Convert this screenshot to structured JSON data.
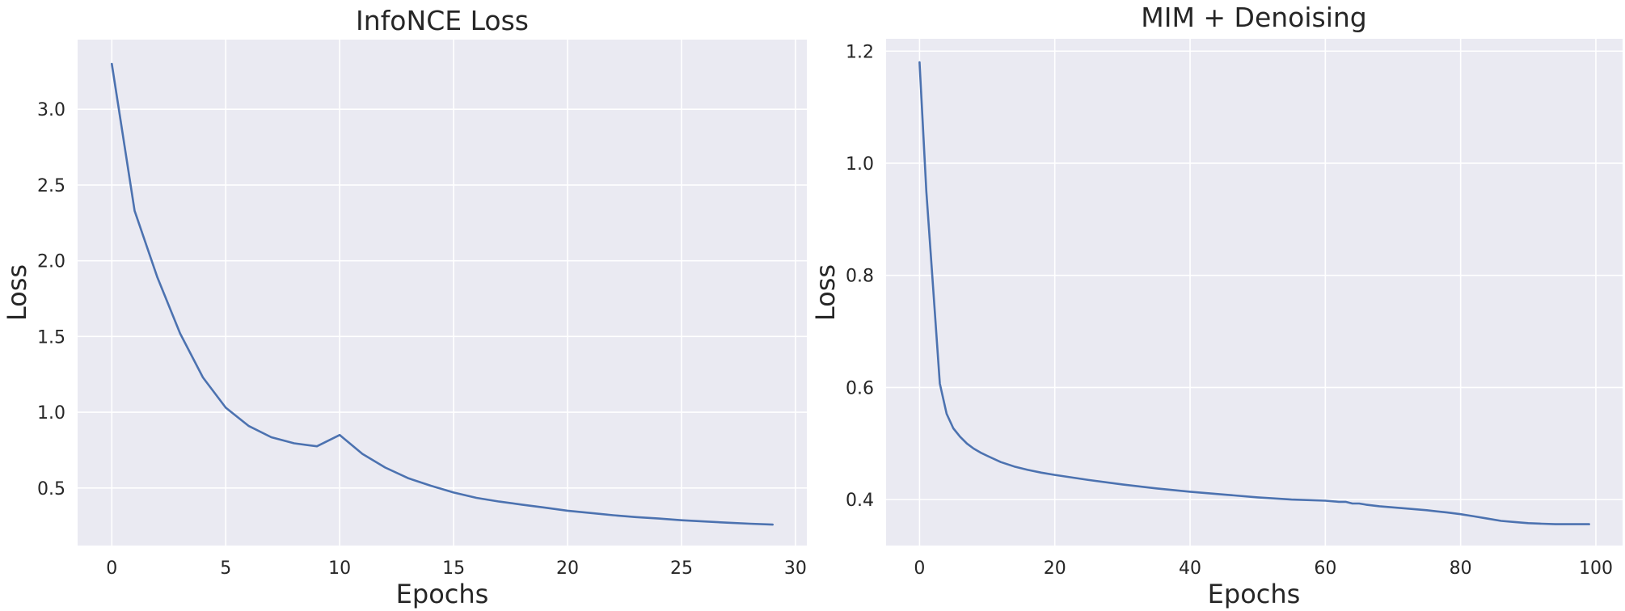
{
  "chart_data": [
    {
      "type": "line",
      "title": "InfoNCE Loss",
      "xlabel": "Epochs",
      "ylabel": "Loss",
      "xlim": [
        -1.5,
        30.5
      ],
      "ylim": [
        0.12,
        3.46
      ],
      "xticks": [
        0,
        5,
        10,
        15,
        20,
        25,
        30
      ],
      "yticks": [
        0.5,
        1.0,
        1.5,
        2.0,
        2.5,
        3.0
      ],
      "xtick_labels": [
        "0",
        "5",
        "10",
        "15",
        "20",
        "25",
        "30"
      ],
      "ytick_labels": [
        "0.5",
        "1.0",
        "1.5",
        "2.0",
        "2.5",
        "3.0"
      ],
      "grid": true,
      "color": "#4c72b0",
      "x": [
        0,
        1,
        2,
        3,
        4,
        5,
        6,
        7,
        8,
        9,
        10,
        11,
        12,
        13,
        14,
        15,
        16,
        17,
        18,
        19,
        20,
        21,
        22,
        23,
        24,
        25,
        26,
        27,
        28,
        29
      ],
      "y": [
        3.3,
        2.33,
        1.89,
        1.52,
        1.23,
        1.03,
        0.91,
        0.835,
        0.795,
        0.775,
        0.85,
        0.725,
        0.635,
        0.565,
        0.515,
        0.47,
        0.435,
        0.41,
        0.39,
        0.37,
        0.35,
        0.335,
        0.32,
        0.308,
        0.298,
        0.287,
        0.279,
        0.271,
        0.264,
        0.258
      ]
    },
    {
      "type": "line",
      "title": "MIM + Denoising",
      "xlabel": "Epochs",
      "ylabel": "Loss",
      "xlim": [
        -4.95,
        103.95
      ],
      "ylim": [
        0.318,
        1.222
      ],
      "xticks": [
        0,
        20,
        40,
        60,
        80,
        100
      ],
      "yticks": [
        0.4,
        0.6,
        0.8,
        1.0,
        1.2
      ],
      "xtick_labels": [
        "0",
        "20",
        "40",
        "60",
        "80",
        "100"
      ],
      "ytick_labels": [
        "0.4",
        "0.6",
        "0.8",
        "1.0",
        "1.2"
      ],
      "grid": true,
      "color": "#4c72b0",
      "x": [
        0,
        1,
        2,
        3,
        4,
        5,
        6,
        7,
        8,
        9,
        10,
        12,
        14,
        16,
        18,
        20,
        25,
        30,
        35,
        40,
        45,
        50,
        55,
        60,
        62,
        63,
        64,
        65,
        66,
        68,
        70,
        72,
        75,
        78,
        80,
        82,
        84,
        86,
        88,
        90,
        92,
        94,
        96,
        99
      ],
      "y": [
        1.18,
        0.95,
        0.78,
        0.607,
        0.553,
        0.527,
        0.512,
        0.5,
        0.491,
        0.484,
        0.478,
        0.467,
        0.459,
        0.453,
        0.448,
        0.444,
        0.435,
        0.427,
        0.42,
        0.414,
        0.409,
        0.404,
        0.4,
        0.398,
        0.396,
        0.396,
        0.393,
        0.393,
        0.391,
        0.388,
        0.386,
        0.384,
        0.381,
        0.377,
        0.374,
        0.37,
        0.366,
        0.362,
        0.36,
        0.358,
        0.357,
        0.356,
        0.356,
        0.356
      ]
    }
  ]
}
